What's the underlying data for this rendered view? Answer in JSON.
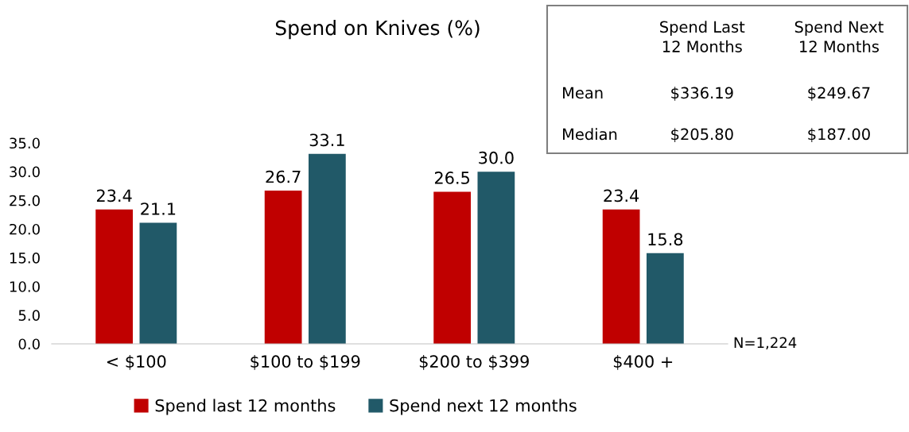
{
  "chart_data": [
    {
      "type": "bar",
      "title": "Spend on Knives (%)",
      "categories": [
        "< $100",
        "$100 to $199",
        "$200 to $399",
        "$400 +"
      ],
      "series": [
        {
          "name": "Spend last 12 months",
          "color": "#c00000",
          "values": [
            23.4,
            26.7,
            26.5,
            23.4
          ],
          "value_labels": [
            "23.4",
            "26.7",
            "26.5",
            "23.4"
          ]
        },
        {
          "name": "Spend next 12 months",
          "color": "#215968",
          "values": [
            21.1,
            33.1,
            30.0,
            15.8
          ],
          "value_labels": [
            "21.1",
            "33.1",
            "30.0",
            "15.8"
          ]
        }
      ],
      "ylim": [
        0,
        35
      ],
      "yticks": [
        {
          "value": 0,
          "label": "0.0"
        },
        {
          "value": 5,
          "label": "5.0"
        },
        {
          "value": 10,
          "label": "10.0"
        },
        {
          "value": 15,
          "label": "15.0"
        },
        {
          "value": 20,
          "label": "20.0"
        },
        {
          "value": 25,
          "label": "25.0"
        },
        {
          "value": 30,
          "label": "30.0"
        },
        {
          "value": 35,
          "label": "35.0"
        }
      ],
      "grid": false,
      "legend": "bottom",
      "annotations": [
        "N=1,224"
      ]
    },
    {
      "type": "other",
      "categories": [
        "Spend Last\n12 Months",
        "Spend Next\n12 Months"
      ],
      "y_categories": [
        "Mean",
        "Median"
      ],
      "cell_labels": [
        [
          "$336.19",
          "$249.67"
        ],
        [
          "$205.80",
          "$187.00"
        ]
      ]
    }
  ]
}
